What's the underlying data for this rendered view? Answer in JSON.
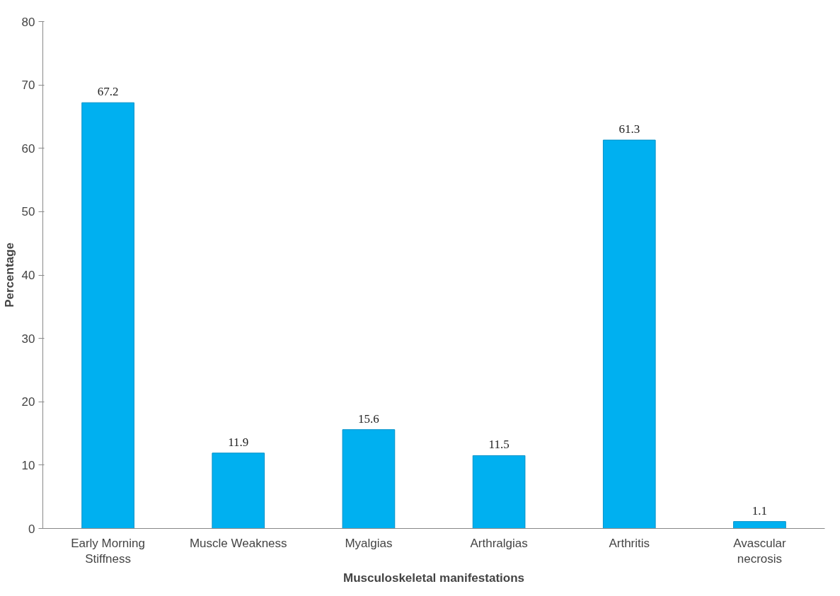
{
  "chart_data": {
    "type": "bar",
    "xlabel": "Musculoskeletal manifestations",
    "ylabel": "Percentage",
    "categories": [
      "Early Morning\nStiffness",
      "Muscle Weakness",
      "Myalgias",
      "Arthralgias",
      "Arthritis",
      "Avascular\nnecrosis"
    ],
    "values": [
      67.2,
      11.9,
      15.6,
      11.5,
      61.3,
      1.1
    ],
    "color": "#00b0f0",
    "ylim": [
      0,
      80
    ],
    "yticks": [
      0,
      10,
      20,
      30,
      40,
      50,
      60,
      70,
      80
    ],
    "grid": false,
    "data_labels": true
  }
}
